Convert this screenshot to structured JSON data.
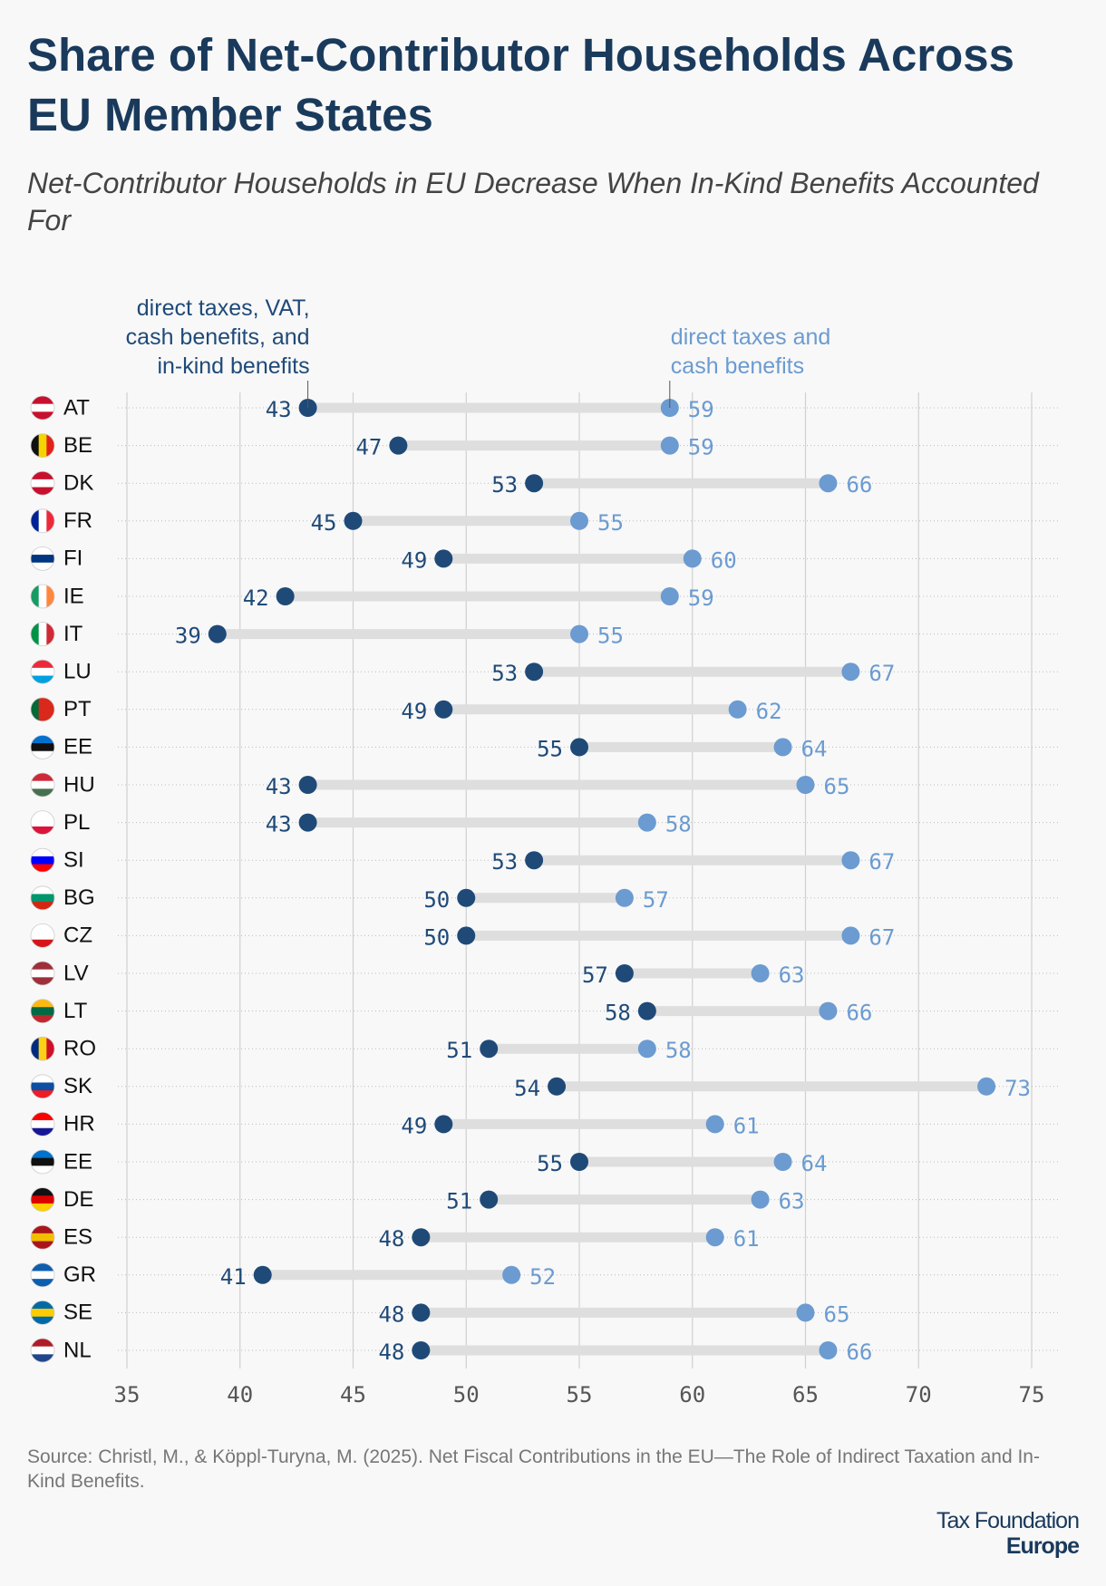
{
  "chart_data": {
    "type": "dumbbell",
    "title": "Share of Net-Contributor Households Across EU Member States",
    "subtitle": "Net-Contributor Households in EU Decrease When In-Kind Benefits Accounted For",
    "categories": [
      "AT",
      "BE",
      "DK",
      "FR",
      "FI",
      "IE",
      "IT",
      "LU",
      "PT",
      "EE",
      "HU",
      "PL",
      "SI",
      "BG",
      "CZ",
      "LV",
      "LT",
      "RO",
      "SK",
      "HR",
      "EE",
      "DE",
      "ES",
      "GR",
      "SE",
      "NL"
    ],
    "series": [
      {
        "name": "direct taxes, VAT, cash benefits, and in-kind benefits",
        "color": "#1f4a78",
        "values": [
          43,
          47,
          53,
          45,
          49,
          42,
          39,
          53,
          49,
          55,
          43,
          43,
          53,
          50,
          50,
          57,
          58,
          51,
          54,
          49,
          55,
          51,
          48,
          41,
          48,
          48
        ]
      },
      {
        "name": "direct taxes and cash benefits",
        "color": "#6b9bd1",
        "values": [
          59,
          59,
          66,
          55,
          60,
          59,
          55,
          67,
          62,
          64,
          65,
          58,
          67,
          57,
          67,
          63,
          66,
          58,
          73,
          61,
          64,
          63,
          61,
          52,
          65,
          66
        ]
      }
    ],
    "xlim": [
      35,
      75
    ],
    "xticks": [
      35,
      40,
      45,
      50,
      55,
      60,
      65,
      70,
      75
    ],
    "grid": true,
    "source": "Source: Christl, M., & Köppl-Turyna, M. (2025). Net Fiscal Contributions in the EU—The Role of Indirect Taxation and In-Kind Benefits.",
    "logo_line1": "Tax Foundation",
    "logo_line2": "Europe"
  }
}
